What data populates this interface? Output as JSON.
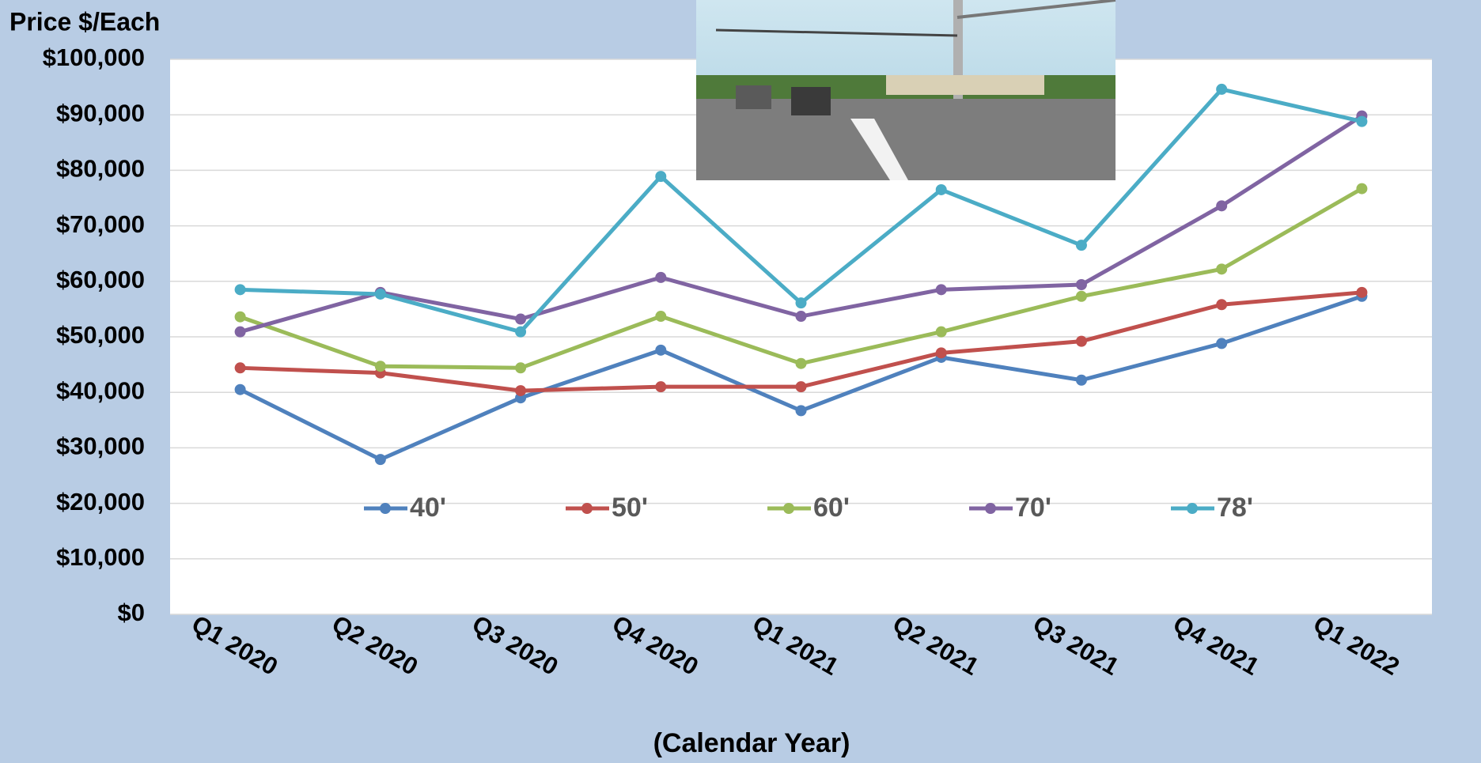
{
  "chart_data": {
    "type": "line",
    "y_label": "Price $/Each",
    "x_label": "(Calendar Year)",
    "categories": [
      "Q1 2020",
      "Q2 2020",
      "Q3 2020",
      "Q4 2020",
      "Q1 2021",
      "Q2 2021",
      "Q3 2021",
      "Q4 2021",
      "Q1 2022"
    ],
    "series": [
      {
        "name": "40'",
        "color": "#4f81bd",
        "values": [
          40500,
          27900,
          39000,
          47600,
          36700,
          46300,
          42200,
          48800,
          57300
        ]
      },
      {
        "name": "50'",
        "color": "#c0504d",
        "values": [
          44400,
          43500,
          40300,
          41000,
          41000,
          47100,
          49200,
          55800,
          58000
        ]
      },
      {
        "name": "60'",
        "color": "#9bbb59",
        "values": [
          53600,
          44700,
          44400,
          53700,
          45200,
          50900,
          57300,
          62200,
          76700
        ]
      },
      {
        "name": "70'",
        "color": "#8064a2",
        "values": [
          50900,
          58000,
          53200,
          60700,
          53700,
          58500,
          59400,
          73600,
          89800
        ]
      },
      {
        "name": "78'",
        "color": "#4bacc6",
        "values": [
          58500,
          57700,
          50900,
          78900,
          56100,
          76500,
          66500,
          94600,
          88800
        ]
      }
    ],
    "ylim": [
      0,
      100000
    ],
    "yticks": [
      {
        "value": 0,
        "label": "$0"
      },
      {
        "value": 10000,
        "label": "$10,000"
      },
      {
        "value": 20000,
        "label": "$20,000"
      },
      {
        "value": 30000,
        "label": "$30,000"
      },
      {
        "value": 40000,
        "label": "$40,000"
      },
      {
        "value": 50000,
        "label": "$50,000"
      },
      {
        "value": 60000,
        "label": "$60,000"
      },
      {
        "value": 70000,
        "label": "$70,000"
      },
      {
        "value": 80000,
        "label": "$80,000"
      },
      {
        "value": 90000,
        "label": "$90,000"
      },
      {
        "value": 100000,
        "label": "$100,000"
      }
    ],
    "grid": true
  }
}
